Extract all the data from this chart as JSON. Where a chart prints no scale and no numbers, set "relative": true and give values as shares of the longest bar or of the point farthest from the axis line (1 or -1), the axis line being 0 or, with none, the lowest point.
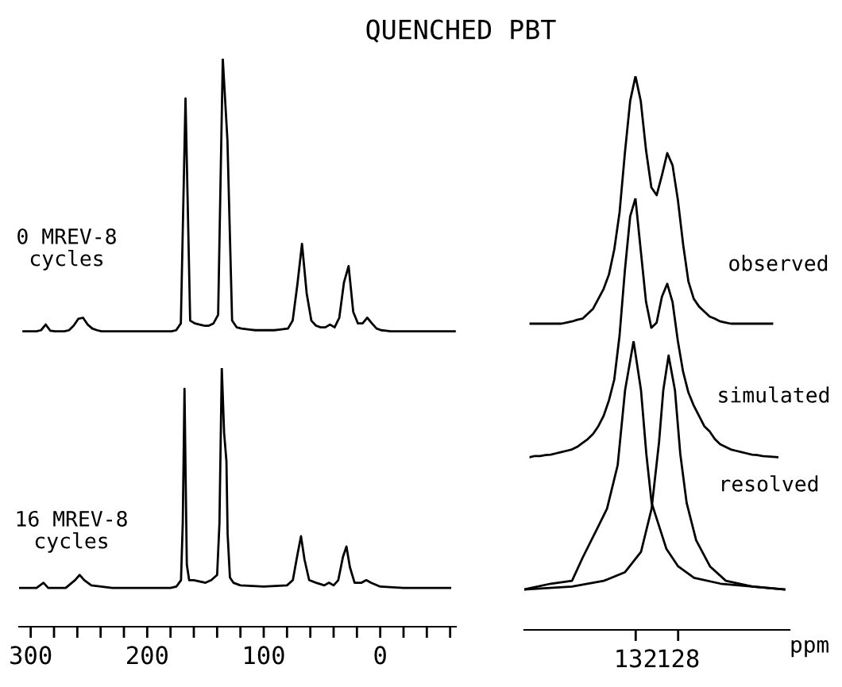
{
  "chart_data": [
    {
      "type": "line",
      "title": "QUENCHED PBT",
      "relative": true,
      "tick_labels": false,
      "annotations": [
        "0 MREV-8\ncycles"
      ],
      "categories": [
        null,
        null,
        null,
        null,
        null,
        null,
        null,
        null,
        null,
        null,
        null,
        null,
        null,
        null,
        null,
        null,
        null,
        null,
        null,
        null,
        null,
        null,
        null,
        null,
        null,
        null,
        null,
        null,
        null,
        null,
        null,
        null,
        null,
        null,
        null,
        null,
        null,
        null,
        null,
        null,
        null,
        null,
        null,
        null,
        null,
        null,
        null,
        null,
        null,
        null,
        null,
        null,
        null,
        null,
        null,
        null,
        null,
        null,
        null,
        null,
        null,
        null,
        null,
        null,
        null,
        null,
        null,
        null,
        null,
        null,
        null,
        null,
        null,
        null,
        null,
        null,
        null,
        null,
        null,
        null,
        null,
        null,
        null,
        null,
        null,
        null,
        null,
        null,
        null,
        null,
        null,
        null,
        null,
        null
      ],
      "series": [
        {
          "color": "#000000",
          "values": [
            0.52,
            0.52,
            0.52,
            0.52,
            0.522,
            0.532,
            0.521,
            0.52,
            0.52,
            0.52,
            0.522,
            0.53,
            0.542,
            0.544,
            0.532,
            0.525,
            0.522,
            0.52,
            0.52,
            0.52,
            0.52,
            0.52,
            0.52,
            0.52,
            0.52,
            0.52,
            0.52,
            0.52,
            0.52,
            0.52,
            0.52,
            0.52,
            0.52,
            0.522,
            0.534,
            0.93,
            0.539,
            0.534,
            0.532,
            0.53,
            0.53,
            0.534,
            0.549,
            1.0,
            0.856,
            0.539,
            0.527,
            0.525,
            0.524,
            0.523,
            0.522,
            0.522,
            0.522,
            0.522,
            0.522,
            0.523,
            0.524,
            0.525,
            0.539,
            0.602,
            0.674,
            0.587,
            0.539,
            0.53,
            0.527,
            0.527,
            0.532,
            0.527,
            0.544,
            0.606,
            0.635,
            0.554,
            0.534,
            0.534,
            0.544,
            0.534,
            0.525,
            0.522,
            0.521,
            0.52,
            0.52,
            0.52,
            0.52,
            0.52,
            0.52,
            0.52,
            0.52,
            0.52,
            0.52,
            0.52,
            0.52,
            0.52,
            0.52,
            0.52
          ]
        }
      ]
    },
    {
      "type": "line",
      "relative": true,
      "xlim": [
        310,
        -65
      ],
      "tick_labels": "x",
      "annotations": [
        "16 MREV-8\ncycles"
      ],
      "xticks": [
        {
          "value": 300,
          "label": "300"
        },
        {
          "value": 280,
          "label": null
        },
        {
          "value": 260,
          "label": null
        },
        {
          "value": 240,
          "label": null
        },
        {
          "value": 220,
          "label": null
        },
        {
          "value": 200,
          "label": "200"
        },
        {
          "value": 180,
          "label": null
        },
        {
          "value": 160,
          "label": null
        },
        {
          "value": 140,
          "label": null
        },
        {
          "value": 120,
          "label": null
        },
        {
          "value": 100,
          "label": "100"
        },
        {
          "value": 80,
          "label": null
        },
        {
          "value": 60,
          "label": null
        },
        {
          "value": 40,
          "label": null
        },
        {
          "value": 20,
          "label": null
        },
        {
          "value": 0,
          "label": "0"
        },
        {
          "value": -20,
          "label": null
        },
        {
          "value": -40,
          "label": null
        },
        {
          "value": -60,
          "label": null
        }
      ],
      "series": [
        {
          "color": "#000000",
          "x": [
            310,
            295,
            289,
            285,
            270,
            262,
            258,
            254,
            248,
            230,
            200,
            180,
            175,
            171,
            169.5,
            168,
            167,
            166,
            164,
            160,
            150,
            145,
            140,
            138,
            136,
            134,
            132,
            131,
            129,
            126,
            120,
            100,
            80,
            75,
            71,
            68,
            65,
            61,
            55,
            48,
            44,
            40,
            36,
            32,
            29,
            26,
            22,
            16,
            12,
            8,
            0,
            -20,
            -40,
            -60
          ],
          "values": [
            0.15,
            0.15,
            0.17,
            0.15,
            0.15,
            0.18,
            0.2,
            0.18,
            0.16,
            0.15,
            0.15,
            0.15,
            0.155,
            0.18,
            0.4,
            0.92,
            0.57,
            0.24,
            0.18,
            0.18,
            0.17,
            0.18,
            0.2,
            0.4,
            1.0,
            0.75,
            0.64,
            0.36,
            0.19,
            0.17,
            0.16,
            0.155,
            0.16,
            0.18,
            0.28,
            0.35,
            0.26,
            0.18,
            0.17,
            0.16,
            0.17,
            0.16,
            0.18,
            0.27,
            0.31,
            0.23,
            0.17,
            0.17,
            0.18,
            0.17,
            0.155,
            0.15,
            0.15,
            0.15
          ]
        }
      ]
    },
    {
      "type": "line",
      "relative": true,
      "tick_labels": false,
      "annotations": [
        "observed"
      ],
      "categories": [
        null,
        null,
        null,
        null,
        null,
        null,
        null,
        null,
        null,
        null,
        null,
        null,
        null,
        null,
        null,
        null,
        null,
        null,
        null,
        null,
        null,
        null,
        null,
        null,
        null,
        null,
        null,
        null,
        null,
        null,
        null,
        null,
        null,
        null,
        null,
        null,
        null,
        null,
        null,
        null,
        null,
        null,
        null,
        null,
        null,
        null,
        null
      ],
      "series": [
        {
          "color": "#000000",
          "values": [
            0.553,
            0.553,
            0.553,
            0.553,
            0.553,
            0.553,
            0.553,
            0.555,
            0.557,
            0.56,
            0.562,
            0.571,
            0.58,
            0.598,
            0.616,
            0.642,
            0.687,
            0.754,
            0.861,
            0.955,
            1.0,
            0.955,
            0.866,
            0.799,
            0.785,
            0.821,
            0.861,
            0.839,
            0.777,
            0.696,
            0.629,
            0.598,
            0.584,
            0.575,
            0.566,
            0.562,
            0.557,
            0.555,
            0.553,
            0.553,
            0.553,
            0.553,
            0.553,
            0.553,
            0.553,
            0.553,
            0.553
          ]
        }
      ]
    },
    {
      "type": "line",
      "relative": true,
      "tick_labels": false,
      "annotations": [
        "simulated"
      ],
      "categories": [
        null,
        null,
        null,
        null,
        null,
        null,
        null,
        null,
        null,
        null,
        null,
        null,
        null,
        null,
        null,
        null,
        null,
        null,
        null,
        null,
        null,
        null,
        null,
        null,
        null,
        null,
        null,
        null,
        null,
        null,
        null,
        null,
        null,
        null,
        null,
        null,
        null,
        null,
        null,
        null,
        null,
        null,
        null,
        null,
        null,
        null,
        null,
        null
      ],
      "series": [
        {
          "color": "#000000",
          "values": [
            0.4,
            0.403,
            0.403,
            0.405,
            0.406,
            0.409,
            0.412,
            0.415,
            0.418,
            0.424,
            0.433,
            0.442,
            0.454,
            0.472,
            0.496,
            0.532,
            0.58,
            0.682,
            0.832,
            0.958,
            1.0,
            0.88,
            0.76,
            0.7,
            0.712,
            0.772,
            0.802,
            0.76,
            0.67,
            0.598,
            0.55,
            0.52,
            0.496,
            0.472,
            0.46,
            0.442,
            0.43,
            0.424,
            0.418,
            0.415,
            0.412,
            0.409,
            0.406,
            0.405,
            0.403,
            0.402,
            0.401,
            0.4
          ]
        }
      ]
    },
    {
      "type": "line",
      "relative": true,
      "xlim": [
        142.5,
        117.5
      ],
      "tick_labels": "x",
      "xlabel": "ppm",
      "annotations": [
        "resolved"
      ],
      "xticks": [
        132,
        128
      ],
      "series": [
        {
          "color": "#000000",
          "x": [
            142.5,
            140,
            138,
            137,
            135.5,
            134.7,
            133.7,
            133,
            132.2,
            131.5,
            131,
            130.5,
            129.1,
            128,
            126.5,
            124,
            121,
            118
          ],
          "values": [
            0.14,
            0.16,
            0.17,
            0.25,
            0.36,
            0.42,
            0.57,
            0.83,
            1.0,
            0.83,
            0.61,
            0.44,
            0.28,
            0.22,
            0.18,
            0.16,
            0.15,
            0.14
          ]
        },
        {
          "color": "#000000",
          "x": [
            142.5,
            138,
            135,
            133,
            131.5,
            130.5,
            129.8,
            129.4,
            128.9,
            128.3,
            127.8,
            127.2,
            126.3,
            125,
            123.5,
            121,
            118
          ],
          "values": [
            0.14,
            0.15,
            0.17,
            0.2,
            0.27,
            0.42,
            0.65,
            0.83,
            0.95,
            0.83,
            0.61,
            0.44,
            0.31,
            0.22,
            0.17,
            0.15,
            0.14
          ]
        }
      ]
    }
  ]
}
